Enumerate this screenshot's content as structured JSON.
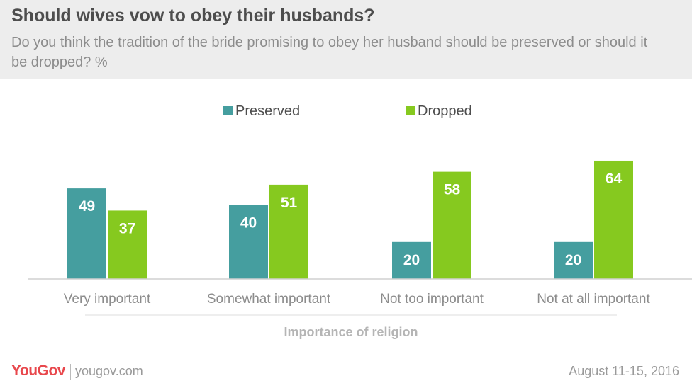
{
  "header": {
    "title": "Should wives vow to obey their husbands?",
    "subtitle": "Do you think the tradition of the bride promising to obey her husband should be preserved or should it be dropped? %"
  },
  "footer": {
    "logo": "YouGov",
    "url": "yougov.com",
    "date": "August 11-15, 2016"
  },
  "colors": {
    "preserved": "#459e9f",
    "dropped": "#86c91f"
  },
  "chart_data": {
    "type": "bar",
    "categories": [
      "Very important",
      "Somewhat important",
      "Not too important",
      "Not at all important"
    ],
    "series": [
      {
        "name": "Preserved",
        "values": [
          49,
          40,
          20,
          20
        ]
      },
      {
        "name": "Dropped",
        "values": [
          37,
          51,
          58,
          64
        ]
      }
    ],
    "xlabel": "Importance of religion",
    "ylabel": "",
    "ylim": [
      0,
      70
    ],
    "legend": "top-center",
    "grid": false
  }
}
